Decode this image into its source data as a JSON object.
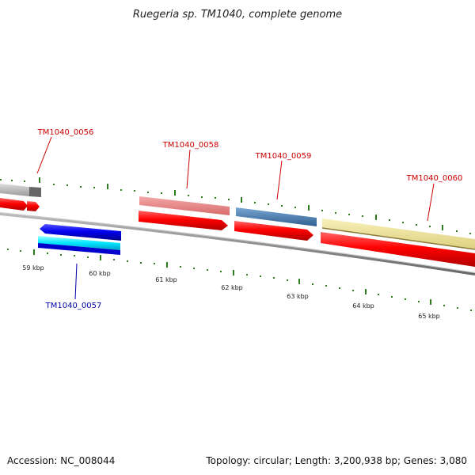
{
  "title": "Ruegeria sp. TM1040, complete genome",
  "footer": {
    "accession": "Accession: NC_008044",
    "summary": "Topology: circular; Length: 3,200,938 bp; Genes: 3,080"
  },
  "genes": [
    {
      "id": "TM1040_0056",
      "strand": "+",
      "color": "#cc0000"
    },
    {
      "id": "TM1040_0057",
      "strand": "-",
      "color": "#0000aa"
    },
    {
      "id": "TM1040_0058",
      "strand": "+",
      "color": "#cc0000"
    },
    {
      "id": "TM1040_0059",
      "strand": "+",
      "color": "#cc0000"
    },
    {
      "id": "TM1040_0060",
      "strand": "+",
      "color": "#cc0000"
    }
  ],
  "scale_labels": [
    "59 kbp",
    "60 kbp",
    "61 kbp",
    "62 kbp",
    "63 kbp",
    "64 kbp",
    "65 kbp"
  ],
  "colors": {
    "forward_cds": "#ee0000",
    "reverse_cds": "#0000ee",
    "feature_grey": "#bbbbbb",
    "feature_pink": "#e88080",
    "feature_steel": "#4a7fb0",
    "feature_khaki": "#efe6a0",
    "tick_green": "#2e7d1e",
    "backbone": "#888888"
  }
}
